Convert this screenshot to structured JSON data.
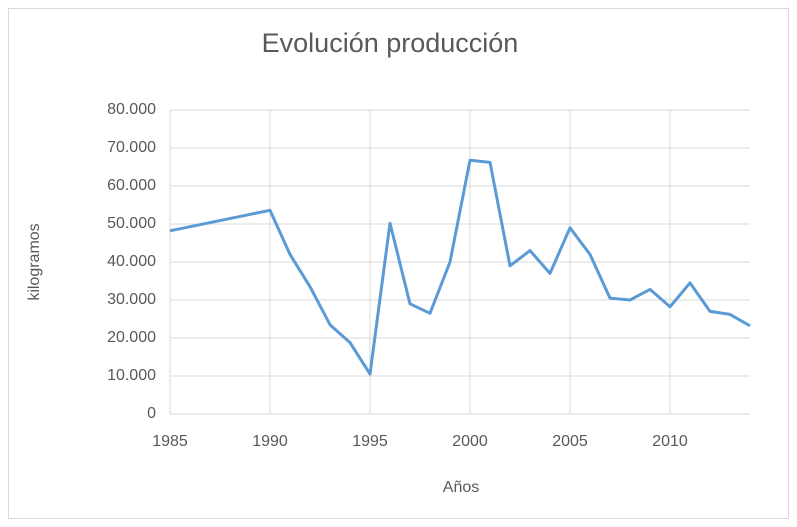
{
  "chart_data": {
    "type": "line",
    "title": "Evolución producción",
    "x_label": "Años",
    "y_label": "kilogramos",
    "x": [
      1985,
      1990,
      1991,
      1992,
      1993,
      1994,
      1995,
      1996,
      1997,
      1998,
      1999,
      2000,
      2001,
      2002,
      2003,
      2004,
      2005,
      2006,
      2007,
      2008,
      2009,
      2010,
      2011,
      2012,
      2013,
      2014
    ],
    "series": [
      {
        "color": "#5b9bd5",
        "values": [
          48200,
          53600,
          42000,
          33500,
          23500,
          18800,
          10500,
          50200,
          29000,
          26500,
          40000,
          66800,
          66200,
          39000,
          43000,
          37000,
          49000,
          42000,
          30500,
          30000,
          32800,
          28200,
          34500,
          27000,
          26200,
          23200
        ]
      }
    ],
    "xlim": [
      1985,
      2014
    ],
    "xticks": [
      1985,
      1990,
      1995,
      2000,
      2005,
      2010
    ],
    "ylim": [
      0,
      80000
    ],
    "yticks": [
      0,
      {
        "value": 10000,
        "label": "10.000"
      },
      {
        "value": 20000,
        "label": "20.000"
      },
      {
        "value": 30000,
        "label": "30.000"
      },
      {
        "value": 40000,
        "label": "40.000"
      },
      {
        "value": 50000,
        "label": "50.000"
      },
      {
        "value": 60000,
        "label": "60.000"
      },
      {
        "value": 70000,
        "label": "70.000"
      },
      {
        "value": 80000,
        "label": "80.000"
      }
    ],
    "grid": true
  }
}
